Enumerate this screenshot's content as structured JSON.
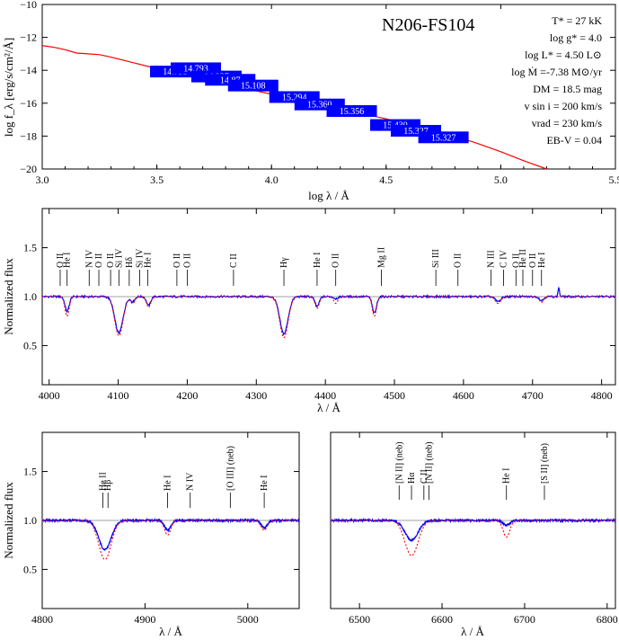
{
  "colors": {
    "model": "#ff0000",
    "observation": "#0000ff",
    "reference": "#a0a0a0",
    "frame": "#000000"
  },
  "chart_data": [
    {
      "type": "line",
      "name_tag": "sed",
      "title": "N206-FS104",
      "xlabel": "log λ / Å",
      "ylabel": "log f_λ [erg/s/cm²/Å]",
      "xlim": [
        3.0,
        5.5
      ],
      "ylim": [
        -20,
        -10
      ],
      "xticks": [
        3.0,
        3.5,
        4.0,
        4.5,
        5.0,
        5.5
      ],
      "yticks": [
        -20,
        -18,
        -16,
        -14,
        -12,
        -10
      ],
      "params": [
        "T* = 27 kK",
        "log g* =  4.0",
        "log L* = 4.50 L⊙",
        "log Ṁ  =-7.38 M⊙/yr",
        "DM = 18.5 mag",
        "v sin i = 200 km/s",
        "vrad = 230 km/s",
        "EB-V = 0.04"
      ],
      "model_curve": {
        "x": [
          3.0,
          3.05,
          3.1,
          3.15,
          3.2,
          3.25,
          3.3,
          3.4,
          3.5,
          3.6,
          3.7,
          3.8,
          3.9,
          4.0,
          4.1,
          4.2,
          4.3,
          4.4,
          4.5,
          4.6,
          4.7,
          4.8,
          4.9,
          5.0,
          5.1,
          5.2
        ],
        "y": [
          -12.5,
          -12.6,
          -12.75,
          -12.95,
          -13.0,
          -13.05,
          -13.2,
          -13.55,
          -13.9,
          -14.2,
          -14.55,
          -14.85,
          -15.15,
          -15.45,
          -15.75,
          -16.05,
          -16.35,
          -16.65,
          -16.95,
          -17.3,
          -17.65,
          -18.0,
          -18.45,
          -18.95,
          -19.5,
          -20.0
        ]
      },
      "photometry": [
        {
          "x": 3.58,
          "y": -14.05,
          "label": "14.793"
        },
        {
          "x": 3.67,
          "y": -13.85,
          "label": "14.793"
        },
        {
          "x": 3.76,
          "y": -14.35,
          "label": "14.937"
        },
        {
          "x": 3.82,
          "y": -14.55,
          "label": "14.87"
        },
        {
          "x": 3.92,
          "y": -14.9,
          "label": "15.108"
        },
        {
          "x": 4.1,
          "y": -15.6,
          "label": "15.294"
        },
        {
          "x": 4.21,
          "y": -16.05,
          "label": "15.360"
        },
        {
          "x": 4.35,
          "y": -16.45,
          "label": "15.356"
        },
        {
          "x": 4.54,
          "y": -17.3,
          "label": "15.430"
        },
        {
          "x": 4.63,
          "y": -17.65,
          "label": "15.327"
        },
        {
          "x": 4.75,
          "y": -18.05,
          "label": "15.327"
        }
      ]
    },
    {
      "type": "line",
      "name_tag": "blue",
      "xlabel": "λ / Å",
      "ylabel": "Normalized flux",
      "xlim": [
        3990,
        4820
      ],
      "ylim": [
        0.1,
        1.9
      ],
      "xticks": [
        4000,
        4100,
        4200,
        4300,
        4400,
        4500,
        4600,
        4700,
        4800
      ],
      "yticks": [
        0.5,
        1.0,
        1.5
      ],
      "line_ids": [
        {
          "x": 4016,
          "label": "O II"
        },
        {
          "x": 4026,
          "label": "He I"
        },
        {
          "x": 4058,
          "label": "N IV"
        },
        {
          "x": 4072,
          "label": "O II"
        },
        {
          "x": 4089,
          "label": "O II"
        },
        {
          "x": 4101,
          "label": "Si IV"
        },
        {
          "x": 4116,
          "label": "Hδ"
        },
        {
          "x": 4131,
          "label": "Si IV"
        },
        {
          "x": 4143,
          "label": "He I"
        },
        {
          "x": 4185,
          "label": "O II"
        },
        {
          "x": 4200,
          "label": "O II"
        },
        {
          "x": 4267,
          "label": "C II"
        },
        {
          "x": 4340,
          "label": "Hγ"
        },
        {
          "x": 4388,
          "label": "He I"
        },
        {
          "x": 4415,
          "label": "O II"
        },
        {
          "x": 4481,
          "label": "Mg II"
        },
        {
          "x": 4560,
          "label": "Si III"
        },
        {
          "x": 4592,
          "label": "O II"
        },
        {
          "x": 4640,
          "label": "N III"
        },
        {
          "x": 4658,
          "label": "C IV"
        },
        {
          "x": 4676,
          "label": "O II"
        },
        {
          "x": 4686,
          "label": "He II"
        },
        {
          "x": 4700,
          "label": "O II"
        },
        {
          "x": 4713,
          "label": "He I"
        }
      ],
      "absorption_lines": [
        {
          "center": 4026,
          "obs_depth": 0.15,
          "model_depth": 0.2,
          "width": 3
        },
        {
          "center": 4101,
          "obs_depth": 0.37,
          "model_depth": 0.4,
          "width": 6
        },
        {
          "center": 4121,
          "obs_depth": 0.05,
          "model_depth": 0.07,
          "width": 3
        },
        {
          "center": 4144,
          "obs_depth": 0.09,
          "model_depth": 0.11,
          "width": 3
        },
        {
          "center": 4340,
          "obs_depth": 0.38,
          "model_depth": 0.42,
          "width": 6
        },
        {
          "center": 4388,
          "obs_depth": 0.1,
          "model_depth": 0.12,
          "width": 3
        },
        {
          "center": 4415,
          "obs_depth": 0.02,
          "model_depth": 0.07,
          "width": 3
        },
        {
          "center": 4471,
          "obs_depth": 0.17,
          "model_depth": 0.2,
          "width": 3
        },
        {
          "center": 4650,
          "obs_depth": 0.05,
          "model_depth": 0.07,
          "width": 4
        },
        {
          "center": 4713,
          "obs_depth": 0.04,
          "model_depth": 0.06,
          "width": 3
        }
      ],
      "emission_lines": [
        {
          "center": 4738,
          "height": 0.1,
          "width": 1
        }
      ]
    },
    {
      "type": "line",
      "name_tag": "hbeta",
      "xlabel": "λ / Å",
      "ylabel": "Normalized flux",
      "xlim": [
        4800,
        5050
      ],
      "ylim": [
        0.1,
        1.9
      ],
      "xticks": [
        4800,
        4900,
        5000
      ],
      "yticks": [
        0.5,
        1.0,
        1.5
      ],
      "line_ids": [
        {
          "x": 4859,
          "label": "He II"
        },
        {
          "x": 4864,
          "label": "Hβ"
        },
        {
          "x": 4922,
          "label": "He I"
        },
        {
          "x": 4944,
          "label": "N IV"
        },
        {
          "x": 4983,
          "label": "[O III] (neb)"
        },
        {
          "x": 5016,
          "label": "He I"
        }
      ],
      "absorption_lines": [
        {
          "center": 4861,
          "obs_depth": 0.3,
          "model_depth": 0.4,
          "width": 6
        },
        {
          "center": 4922,
          "obs_depth": 0.1,
          "model_depth": 0.15,
          "width": 3
        },
        {
          "center": 5016,
          "obs_depth": 0.07,
          "model_depth": 0.1,
          "width": 3
        }
      ],
      "emission_lines": []
    },
    {
      "type": "line",
      "name_tag": "halpha",
      "xlabel": "λ / Å",
      "ylabel": "",
      "xlim": [
        6465,
        6810
      ],
      "ylim": [
        0.1,
        1.9
      ],
      "xticks": [
        6500,
        6600,
        6700,
        6800
      ],
      "yticks": [],
      "line_ids": [
        {
          "x": 6548,
          "label": "[N II] (neb)"
        },
        {
          "x": 6563,
          "label": "Hα"
        },
        {
          "x": 6578,
          "label": "C II"
        },
        {
          "x": 6584,
          "label": "[N II] (neb)"
        },
        {
          "x": 6678,
          "label": "He I"
        },
        {
          "x": 6724,
          "label": "[S II] (neb)"
        }
      ],
      "absorption_lines": [
        {
          "center": 6563,
          "obs_depth": 0.2,
          "model_depth": 0.36,
          "width": 8
        },
        {
          "center": 6678,
          "obs_depth": 0.05,
          "model_depth": 0.17,
          "width": 4
        }
      ],
      "emission_lines": []
    }
  ]
}
